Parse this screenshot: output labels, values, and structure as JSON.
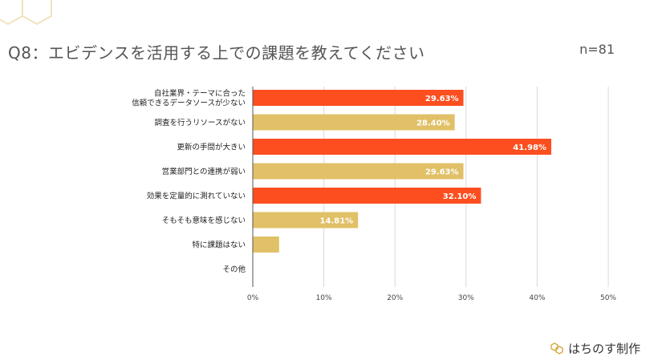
{
  "header": {
    "title": "Q8：エビデンスを活用する上での課題を教えてください",
    "sample_size": "n=81"
  },
  "brand": {
    "name": "はちのす制作",
    "icon": "honeycomb-icon"
  },
  "colors": {
    "highlight": "#FC4E1F",
    "normal": "#E1C067",
    "grid": "#D9D9D9",
    "deco": "#F0E3BE"
  },
  "chart_data": {
    "type": "bar",
    "orientation": "horizontal",
    "categories": [
      [
        "自社業界・テーマに合った",
        "信頼できるデータソースが少ない"
      ],
      [
        "調査を行うリソースがない"
      ],
      [
        "更新の手間が大きい"
      ],
      [
        "営業部門との連携が弱い"
      ],
      [
        "効果を定量的に測れていない"
      ],
      [
        "そもそも意味を感じない"
      ],
      [
        "特に課題はない"
      ],
      [
        "その他"
      ]
    ],
    "values": [
      29.63,
      28.4,
      41.98,
      29.63,
      32.1,
      14.81,
      3.7,
      0
    ],
    "data_labels": [
      "29.63%",
      "28.40%",
      "41.98%",
      "29.63%",
      "32.10%",
      "14.81%",
      "",
      ""
    ],
    "highlight": [
      true,
      false,
      true,
      false,
      true,
      false,
      false,
      false
    ],
    "xlim": [
      0,
      50
    ],
    "xticks": [
      "0%",
      "10%",
      "20%",
      "30%",
      "40%",
      "50%"
    ],
    "grid": true
  }
}
